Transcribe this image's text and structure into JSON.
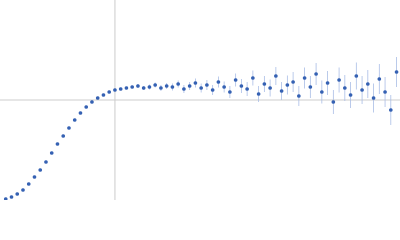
{
  "chart_data": {
    "type": "scatter",
    "xlim": [
      0,
      3.48
    ],
    "ylim": [
      0,
      2
    ],
    "reference_lines": {
      "x": 1,
      "y": 1,
      "color": "#cccccc"
    },
    "error_color": "#a9bde6",
    "series": [
      {
        "color": "#3561b3",
        "x": [
          0.05,
          0.1,
          0.15,
          0.2,
          0.25,
          0.3,
          0.35,
          0.4,
          0.45,
          0.5,
          0.55,
          0.6,
          0.65,
          0.7,
          0.75,
          0.8,
          0.85,
          0.9,
          0.95,
          1.0,
          1.05,
          1.1,
          1.15,
          1.2,
          1.25,
          1.3,
          1.35,
          1.4,
          1.45,
          1.5,
          1.55,
          1.6,
          1.65,
          1.7,
          1.75,
          1.8,
          1.85,
          1.9,
          1.95,
          2.0,
          2.05,
          2.1,
          2.15,
          2.2,
          2.25,
          2.3,
          2.35,
          2.4,
          2.45,
          2.5,
          2.55,
          2.6,
          2.65,
          2.7,
          2.75,
          2.8,
          2.85,
          2.9,
          2.95,
          3.0,
          3.05,
          3.1,
          3.15,
          3.2,
          3.25,
          3.3,
          3.35,
          3.4,
          3.45
        ],
        "values": [
          0.01,
          0.03,
          0.06,
          0.1,
          0.16,
          0.23,
          0.3,
          0.38,
          0.47,
          0.56,
          0.64,
          0.72,
          0.8,
          0.87,
          0.93,
          0.98,
          1.02,
          1.05,
          1.08,
          1.1,
          1.11,
          1.12,
          1.13,
          1.14,
          1.12,
          1.13,
          1.15,
          1.12,
          1.14,
          1.13,
          1.16,
          1.11,
          1.14,
          1.17,
          1.12,
          1.15,
          1.1,
          1.18,
          1.13,
          1.08,
          1.2,
          1.14,
          1.11,
          1.22,
          1.06,
          1.16,
          1.12,
          1.24,
          1.09,
          1.15,
          1.18,
          1.04,
          1.22,
          1.13,
          1.26,
          1.08,
          1.17,
          0.98,
          1.2,
          1.12,
          1.05,
          1.24,
          1.1,
          1.16,
          1.02,
          1.21,
          1.08,
          0.9,
          1.28
        ],
        "errors": [
          0.005,
          0.005,
          0.005,
          0.005,
          0.005,
          0.005,
          0.005,
          0.005,
          0.005,
          0.005,
          0.005,
          0.005,
          0.005,
          0.005,
          0.005,
          0.005,
          0.005,
          0.005,
          0.005,
          0.005,
          0.005,
          0.005,
          0.005,
          0.02,
          0.02,
          0.025,
          0.025,
          0.03,
          0.03,
          0.035,
          0.035,
          0.04,
          0.04,
          0.045,
          0.045,
          0.05,
          0.05,
          0.055,
          0.055,
          0.06,
          0.065,
          0.07,
          0.07,
          0.075,
          0.08,
          0.08,
          0.085,
          0.09,
          0.09,
          0.095,
          0.1,
          0.1,
          0.105,
          0.11,
          0.11,
          0.115,
          0.12,
          0.12,
          0.125,
          0.13,
          0.13,
          0.135,
          0.14,
          0.14,
          0.145,
          0.15,
          0.15,
          0.15,
          0.15
        ]
      }
    ]
  }
}
